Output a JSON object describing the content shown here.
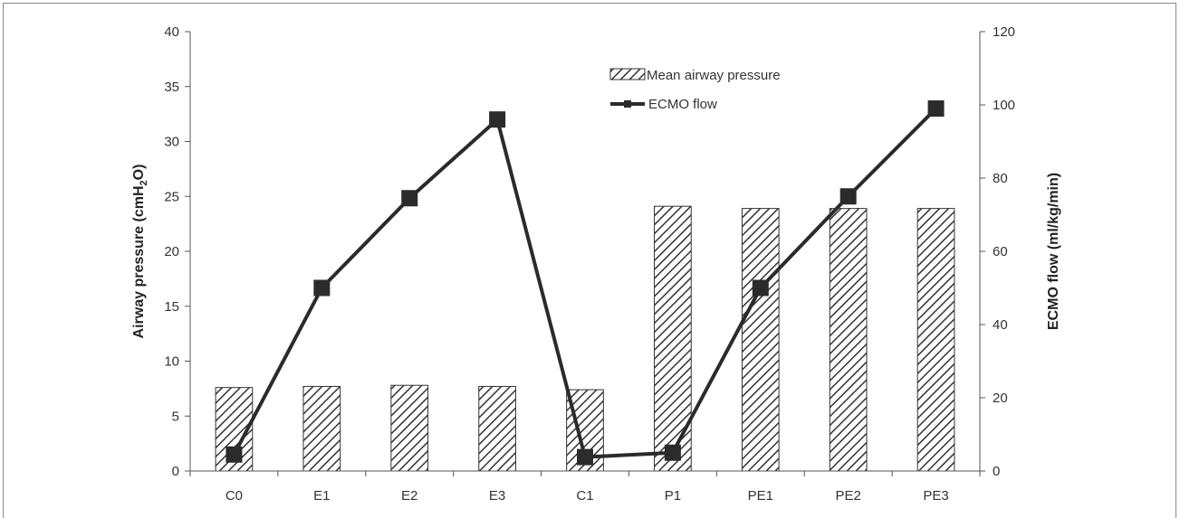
{
  "chart_data": {
    "type": "bar",
    "categories": [
      "C0",
      "E1",
      "E2",
      "E3",
      "C1",
      "P1",
      "PE1",
      "PE2",
      "PE3"
    ],
    "series": [
      {
        "name": "Mean airway pressure",
        "type": "bar",
        "axis": "left",
        "values": [
          7.6,
          7.7,
          7.8,
          7.7,
          7.4,
          24.1,
          23.9,
          23.9,
          23.9
        ]
      },
      {
        "name": "ECMO flow",
        "type": "line",
        "axis": "right",
        "values": [
          4.5,
          50,
          74.5,
          96,
          3.8,
          5,
          50,
          75,
          99
        ]
      }
    ],
    "ylabel_left_parts": [
      "Airway pressure (cmH",
      "2",
      "O)"
    ],
    "ylabel_right": "ECMO flow (ml/kg/min)",
    "ylim_left": [
      0,
      40
    ],
    "ylim_right": [
      0,
      120
    ],
    "yticks_left": [
      "0",
      "5",
      "10",
      "15",
      "20",
      "25",
      "30",
      "35",
      "40"
    ],
    "yticks_right": [
      "0",
      "20",
      "40",
      "60",
      "80",
      "100",
      "120"
    ],
    "legend_position": "top-right-inside",
    "colors": {
      "bar_hatch": "#333333",
      "line": "#2b2b2b",
      "axis": "#555555"
    }
  }
}
